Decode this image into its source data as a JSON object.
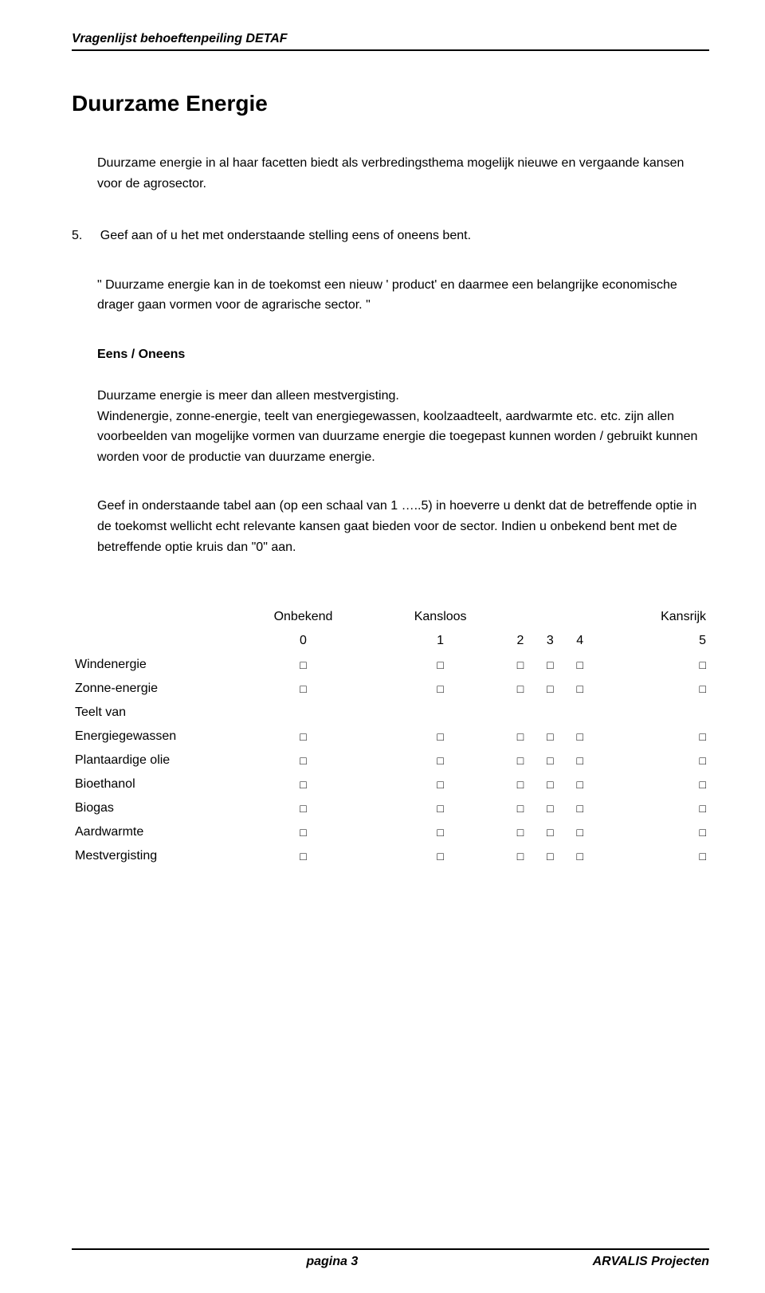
{
  "header": {
    "text": "Vragenlijst  behoeftenpeiling DETAF"
  },
  "title": "Duurzame Energie",
  "intro": "Duurzame energie in al haar facetten biedt als verbredingsthema mogelijk nieuwe en vergaande kansen voor de agrosector.",
  "question": {
    "number": "5.",
    "text": "Geef aan of u het met onderstaande stelling eens of oneens bent."
  },
  "statement": "\" Duurzame energie kan in de toekomst een nieuw ' product' en daarmee een belangrijke economische drager gaan vormen voor de agrarische sector. \"",
  "answer_label": "Eens / Oneens",
  "body1": "Duurzame energie is meer dan alleen mestvergisting.",
  "body2": "Windenergie, zonne-energie, teelt van energiegewassen, koolzaadteelt, aardwarmte etc. etc. zijn allen voorbeelden van mogelijke vormen van duurzame energie die toegepast kunnen worden / gebruikt kunnen worden voor de productie van duurzame energie.",
  "body3": "Geef in onderstaande tabel aan (op een schaal van 1 …..5) in hoeverre u denkt dat de betreffende optie in de toekomst wellicht echt relevante kansen gaat bieden voor de sector. Indien u onbekend bent met de betreffende optie kruis dan \"0\" aan.",
  "table": {
    "word_headers": {
      "unknown": "Onbekend",
      "chanceless": "Kansloos",
      "chancefull": "Kansrijk"
    },
    "num_headers": [
      "0",
      "1",
      "2",
      "3",
      "4",
      "5"
    ],
    "rows": [
      "Windenergie",
      "Zonne-energie",
      "Teelt van",
      "Energiegewassen",
      "Plantaardige olie",
      "Bioethanol",
      "Biogas",
      "Aardwarmte",
      "Mestvergisting"
    ],
    "no_checkbox_row_index": 2,
    "checkbox_glyph": "□"
  },
  "footer": {
    "page_label": "pagina 3",
    "org": "ARVALIS Projecten"
  },
  "colors": {
    "text": "#000000",
    "background": "#ffffff",
    "rule": "#000000"
  }
}
